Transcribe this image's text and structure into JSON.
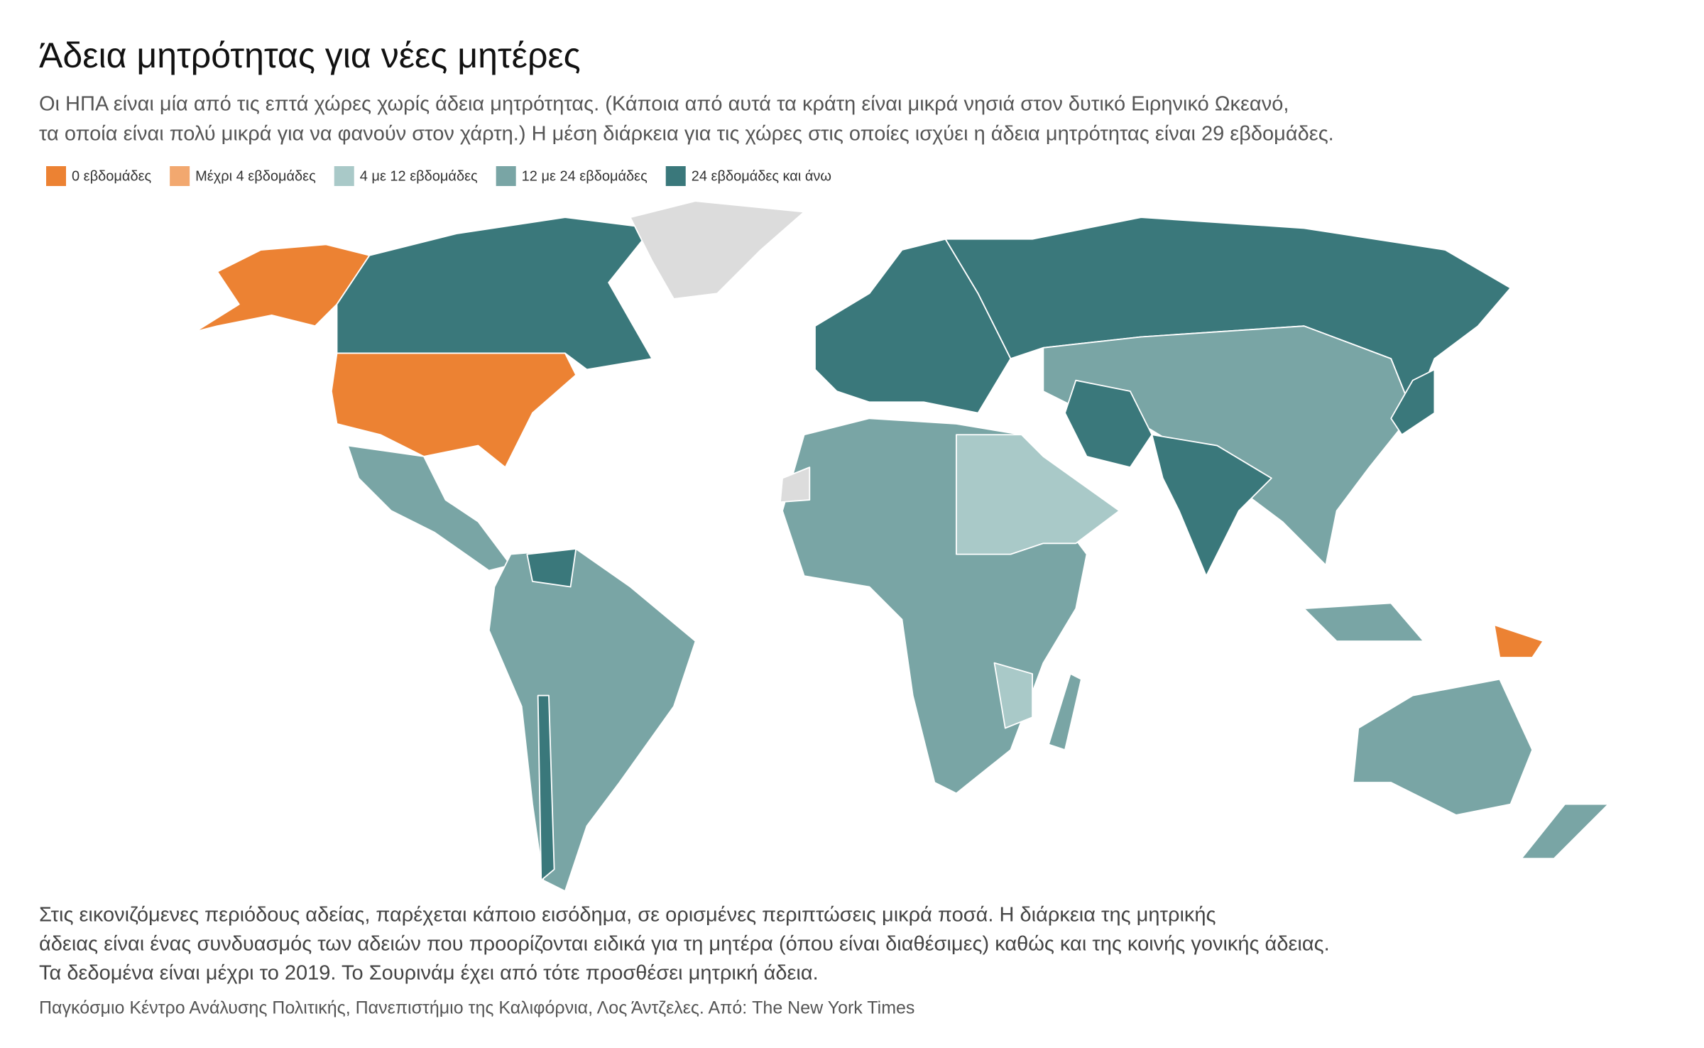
{
  "title": "Άδεια μητρότητας για νέες μητέρες",
  "subtitle": [
    "Οι ΗΠΑ είναι μία από τις επτά χώρες χωρίς άδεια μητρότητας. (Κάποια από αυτά τα κράτη είναι μικρά νησιά στον δυτικό Ειρηνικό Ωκεανό,",
    "τα οποία είναι πολύ μικρά για να φανούν στον χάρτη.) Η μέση διάρκεια για τις χώρες στις οποίες ισχύει η άδεια μητρότητας είναι 29 εβδομάδες."
  ],
  "legend": [
    {
      "label": "0 εβδομάδες",
      "color": "#ec8233"
    },
    {
      "label": "Μέχρι 4 εβδομάδες",
      "color": "#f2a86f"
    },
    {
      "label": "4 με 12 εβδομάδες",
      "color": "#a9c9c8"
    },
    {
      "label": "12 με 24 εβδομάδες",
      "color": "#79a5a5"
    },
    {
      "label": "24 εβδομάδες και άνω",
      "color": "#3a787b"
    }
  ],
  "notes": [
    "Στις εικονιζόμενες περιόδους αδείας, παρέχεται κάποιο εισόδημα, σε ορισμένες περιπτώσεις μικρά ποσά. Η διάρκεια της μητρικής",
    "άδειας είναι ένας συνδυασμός των αδειών που προορίζονται ειδικά για τη μητέρα (όπου είναι διαθέσιμες) καθώς και της κοινής γονικής άδειας.",
    "Τα δεδομένα είναι μέχρι το 2019. Το Σουρινάμ έχει από τότε προσθέσει μητρική άδεια."
  ],
  "source": "Παγκόσμιο Κέντρο Ανάλυσης Πολιτικής, Πανεπιστήμιο της Καλιφόρνια, Λος Άντζελες. Από: The New York Times"
}
